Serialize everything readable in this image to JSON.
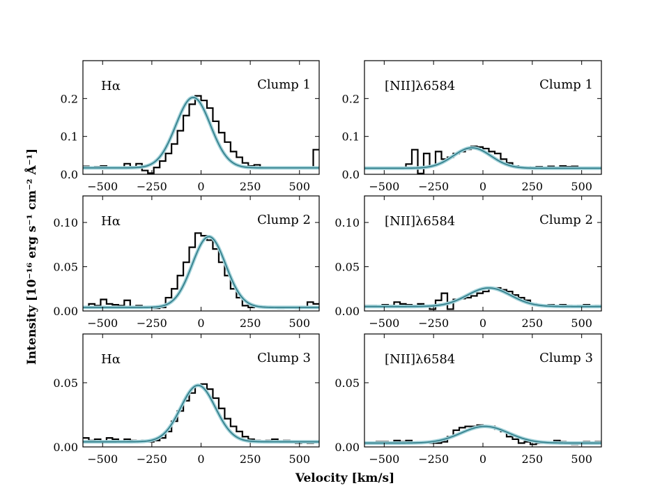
{
  "figure": {
    "xlabel": "Velocity [km/s]",
    "ylabel": "Intensity [10⁻¹⁶ erg s⁻¹ cm⁻² Å⁻¹]"
  },
  "colors": {
    "data": "#000000",
    "fit_line": "#2e7b87",
    "fit_band": "#9fd0d8"
  },
  "chart_data": [
    {
      "type": "line",
      "line": "Hα",
      "clump": "Clump 1",
      "xlim": [
        -600,
        600
      ],
      "ylim": [
        0,
        0.3
      ],
      "xticks": [
        -500,
        -250,
        0,
        250,
        500
      ],
      "xtick_labels": [
        "−500",
        "−250",
        "0",
        "250",
        "500"
      ],
      "yticks": [
        0,
        0.1,
        0.2
      ],
      "ytick_labels": [
        "0.0",
        "0.1",
        "0.2"
      ],
      "fit": {
        "baseline": 0.017,
        "amplitude": 0.186,
        "center": -40,
        "sigma": 88
      },
      "data": {
        "x": [
          -600,
          -570,
          -540,
          -510,
          -480,
          -450,
          -420,
          -390,
          -360,
          -330,
          -300,
          -270,
          -240,
          -210,
          -180,
          -150,
          -120,
          -90,
          -60,
          -30,
          0,
          30,
          60,
          90,
          120,
          150,
          180,
          210,
          240,
          270,
          300,
          330,
          360,
          390,
          420,
          450,
          480,
          510,
          540,
          570
        ],
        "y": [
          0.021,
          0.019,
          0.02,
          0.022,
          0.018,
          0.019,
          0.017,
          0.028,
          0.02,
          0.028,
          0.01,
          0.003,
          0.018,
          0.035,
          0.055,
          0.08,
          0.115,
          0.155,
          0.185,
          0.207,
          0.195,
          0.175,
          0.14,
          0.11,
          0.085,
          0.06,
          0.045,
          0.03,
          0.022,
          0.025,
          0.018,
          0.019,
          0.016,
          0.019,
          0.016,
          0.017,
          0.016,
          0.017,
          0.018,
          0.065
        ]
      }
    },
    {
      "type": "line",
      "line": "[NII]λ6584",
      "clump": "Clump 1",
      "xlim": [
        -600,
        600
      ],
      "ylim": [
        0,
        0.3
      ],
      "xticks": [
        -500,
        -250,
        0,
        250,
        500
      ],
      "xtick_labels": [
        "−500",
        "−250",
        "0",
        "250",
        "500"
      ],
      "yticks": [
        0,
        0.1,
        0.2
      ],
      "ytick_labels": [
        "0.0",
        "0.1",
        "0.2"
      ],
      "fit": {
        "baseline": 0.016,
        "amplitude": 0.054,
        "center": -55,
        "sigma": 95
      },
      "data": {
        "x": [
          -600,
          -570,
          -540,
          -510,
          -480,
          -450,
          -420,
          -390,
          -360,
          -330,
          -300,
          -270,
          -240,
          -210,
          -180,
          -150,
          -120,
          -90,
          -60,
          -30,
          0,
          30,
          60,
          90,
          120,
          150,
          180,
          210,
          240,
          270,
          300,
          330,
          360,
          390,
          420,
          450,
          480,
          510,
          540,
          570
        ],
        "y": [
          0.017,
          0.018,
          0.016,
          0.017,
          0.018,
          0.016,
          0.017,
          0.027,
          0.065,
          0.002,
          0.055,
          0.022,
          0.06,
          0.04,
          0.045,
          0.055,
          0.06,
          0.066,
          0.074,
          0.072,
          0.068,
          0.06,
          0.055,
          0.04,
          0.03,
          0.022,
          0.018,
          0.019,
          0.016,
          0.02,
          0.017,
          0.021,
          0.017,
          0.022,
          0.02,
          0.021,
          0.018,
          0.017,
          0.018,
          0.016
        ]
      }
    },
    {
      "type": "line",
      "line": "Hα",
      "clump": "Clump 2",
      "xlim": [
        -600,
        600
      ],
      "ylim": [
        0,
        0.13
      ],
      "xticks": [
        -500,
        -250,
        0,
        250,
        500
      ],
      "xtick_labels": [
        "−500",
        "−250",
        "0",
        "250",
        "500"
      ],
      "yticks": [
        0,
        0.05,
        0.1
      ],
      "ytick_labels": [
        "0.00",
        "0.05",
        "0.10"
      ],
      "fit": {
        "baseline": 0.004,
        "amplitude": 0.08,
        "center": 40,
        "sigma": 85
      },
      "data": {
        "x": [
          -600,
          -570,
          -540,
          -510,
          -480,
          -450,
          -420,
          -390,
          -360,
          -330,
          -300,
          -270,
          -240,
          -210,
          -180,
          -150,
          -120,
          -90,
          -60,
          -30,
          0,
          30,
          60,
          90,
          120,
          150,
          180,
          210,
          240,
          270,
          300,
          330,
          360,
          390,
          420,
          450,
          480,
          510,
          540,
          570
        ],
        "y": [
          0.005,
          0.008,
          0.006,
          0.013,
          0.008,
          0.007,
          0.006,
          0.012,
          0.004,
          0.006,
          0.005,
          0.004,
          0.003,
          0.004,
          0.015,
          0.025,
          0.04,
          0.055,
          0.072,
          0.088,
          0.085,
          0.08,
          0.07,
          0.055,
          0.04,
          0.025,
          0.015,
          0.006,
          0.004,
          0.005,
          0.004,
          0.005,
          0.004,
          0.003,
          0.005,
          0.004,
          0.003,
          0.005,
          0.01,
          0.008
        ]
      }
    },
    {
      "type": "line",
      "line": "[NII]λ6584",
      "clump": "Clump 2",
      "xlim": [
        -600,
        600
      ],
      "ylim": [
        0,
        0.13
      ],
      "xticks": [
        -500,
        -250,
        0,
        250,
        500
      ],
      "xtick_labels": [
        "−500",
        "−250",
        "0",
        "250",
        "500"
      ],
      "yticks": [
        0,
        0.05,
        0.1
      ],
      "ytick_labels": [
        "0.00",
        "0.05",
        "0.10"
      ],
      "fit": {
        "baseline": 0.005,
        "amplitude": 0.021,
        "center": 30,
        "sigma": 110
      },
      "data": {
        "x": [
          -600,
          -570,
          -540,
          -510,
          -480,
          -450,
          -420,
          -390,
          -360,
          -330,
          -300,
          -270,
          -240,
          -210,
          -180,
          -150,
          -120,
          -90,
          -60,
          -30,
          0,
          30,
          60,
          90,
          120,
          150,
          180,
          210,
          240,
          270,
          300,
          330,
          360,
          390,
          420,
          450,
          480,
          510,
          540,
          570
        ],
        "y": [
          0.006,
          0.006,
          0.005,
          0.007,
          0.006,
          0.01,
          0.008,
          0.007,
          0.006,
          0.008,
          0.006,
          0.002,
          0.012,
          0.02,
          0.002,
          0.013,
          0.014,
          0.015,
          0.017,
          0.02,
          0.022,
          0.025,
          0.026,
          0.024,
          0.022,
          0.018,
          0.015,
          0.012,
          0.008,
          0.007,
          0.006,
          0.007,
          0.006,
          0.007,
          0.006,
          0.005,
          0.006,
          0.007,
          0.005,
          0.006
        ]
      }
    },
    {
      "type": "line",
      "line": "Hα",
      "clump": "Clump 3",
      "xlim": [
        -600,
        600
      ],
      "ylim": [
        0,
        0.088
      ],
      "xticks": [
        -500,
        -250,
        0,
        250,
        500
      ],
      "xtick_labels": [
        "−500",
        "−250",
        "0",
        "250",
        "500"
      ],
      "yticks": [
        0,
        0.05
      ],
      "ytick_labels": [
        "0.00",
        "0.05"
      ],
      "fit": {
        "baseline": 0.004,
        "amplitude": 0.044,
        "center": -15,
        "sigma": 88
      },
      "data": {
        "x": [
          -600,
          -570,
          -540,
          -510,
          -480,
          -450,
          -420,
          -390,
          -360,
          -330,
          -300,
          -270,
          -240,
          -210,
          -180,
          -150,
          -120,
          -90,
          -60,
          -30,
          0,
          30,
          60,
          90,
          120,
          150,
          180,
          210,
          240,
          270,
          300,
          330,
          360,
          390,
          420,
          450,
          480,
          510,
          540,
          570
        ],
        "y": [
          0.007,
          0.005,
          0.006,
          0.004,
          0.007,
          0.006,
          0.004,
          0.006,
          0.005,
          0.004,
          0.005,
          0.004,
          0.005,
          0.007,
          0.012,
          0.02,
          0.028,
          0.036,
          0.042,
          0.048,
          0.049,
          0.045,
          0.038,
          0.03,
          0.022,
          0.016,
          0.012,
          0.008,
          0.006,
          0.005,
          0.004,
          0.005,
          0.006,
          0.004,
          0.005,
          0.004,
          0.003,
          0.004,
          0.003,
          0.004
        ]
      }
    },
    {
      "type": "line",
      "line": "[NII]λ6584",
      "clump": "Clump 3",
      "xlim": [
        -600,
        600
      ],
      "ylim": [
        0,
        0.088
      ],
      "xticks": [
        -500,
        -250,
        0,
        250,
        500
      ],
      "xtick_labels": [
        "−500",
        "−250",
        "0",
        "250",
        "500"
      ],
      "yticks": [
        0,
        0.05
      ],
      "ytick_labels": [
        "0.00",
        "0.05"
      ],
      "fit": {
        "baseline": 0.003,
        "amplitude": 0.013,
        "center": 10,
        "sigma": 120
      },
      "data": {
        "x": [
          -600,
          -570,
          -540,
          -510,
          -480,
          -450,
          -420,
          -390,
          -360,
          -330,
          -300,
          -270,
          -240,
          -210,
          -180,
          -150,
          -120,
          -90,
          -60,
          -30,
          0,
          30,
          60,
          90,
          120,
          150,
          180,
          210,
          240,
          270,
          300,
          330,
          360,
          390,
          420,
          450,
          480,
          510,
          540,
          570
        ],
        "y": [
          0.003,
          0.003,
          0.004,
          0.004,
          0.003,
          0.005,
          0.004,
          0.005,
          0.003,
          0.004,
          0.004,
          0.003,
          0.003,
          0.004,
          0.008,
          0.013,
          0.015,
          0.016,
          0.016,
          0.017,
          0.016,
          0.016,
          0.014,
          0.012,
          0.008,
          0.006,
          0.003,
          0.004,
          0.002,
          0.003,
          0.004,
          0.003,
          0.005,
          0.004,
          0.003,
          0.002,
          0.003,
          0.004,
          0.003,
          0.004
        ]
      }
    }
  ]
}
